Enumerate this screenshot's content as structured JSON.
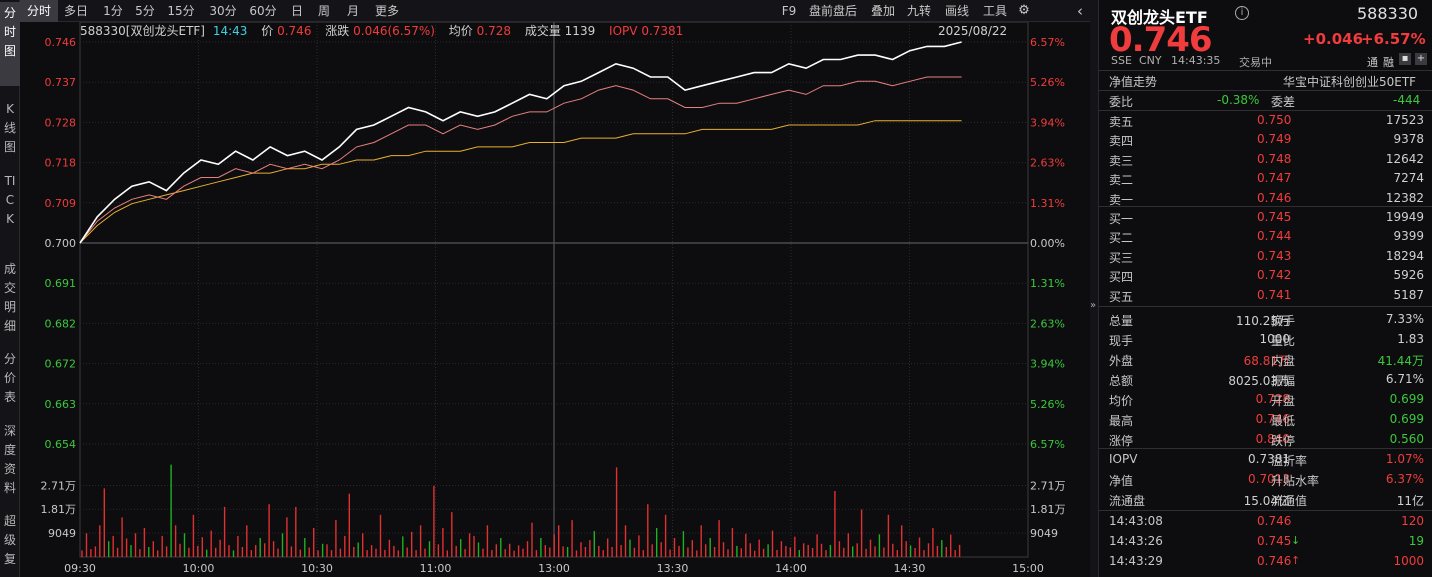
{
  "left_tabs": [
    {
      "label": "分时图",
      "name": "vtab-timeshare",
      "active": true
    },
    {
      "label": "K线图",
      "name": "vtab-kline"
    },
    {
      "label": "TICK",
      "name": "vtab-tick"
    },
    {
      "label": "成交明细",
      "name": "vtab-trade-detail"
    },
    {
      "label": "分价表",
      "name": "vtab-price-table"
    },
    {
      "label": "深度资料",
      "name": "vtab-depth-info"
    },
    {
      "label": "超级复",
      "name": "vtab-super"
    }
  ],
  "toolbar": {
    "periods": [
      "分时",
      "多日",
      "1分",
      "5分",
      "15分",
      "30分",
      "60分",
      "日",
      "周",
      "月",
      "更多"
    ],
    "tools": [
      "F9",
      "盘前盘后",
      "叠加",
      "九转",
      "画线",
      "工具"
    ],
    "settings_icon": "settings-icon",
    "more_icon": "chevron-left-icon"
  },
  "info": {
    "code_name": "588330[双创龙头ETF]",
    "time": "14:43",
    "price_label": "价",
    "price": "0.746",
    "change_label": "涨跌",
    "change": "0.046(6.57%)",
    "avg_label": "均价",
    "avg": "0.728",
    "volume_label": "成交量",
    "volume": "1139",
    "iopv_label": "IOPV",
    "iopv": "0.7381",
    "date": "2025/08/22"
  },
  "axes": {
    "price_ticks": [
      "0.746",
      "0.737",
      "0.728",
      "0.718",
      "0.709",
      "0.700",
      "0.691",
      "0.682",
      "0.672",
      "0.663",
      "0.654"
    ],
    "pct_ticks": [
      "6.57%",
      "5.26%",
      "3.94%",
      "2.63%",
      "1.31%",
      "0.00%",
      "1.31%",
      "2.63%",
      "3.94%",
      "5.26%",
      "6.57%"
    ],
    "vol_ticks": [
      "2.71万",
      "1.81万",
      "9049"
    ],
    "time_ticks": [
      "09:30",
      "10:00",
      "10:30",
      "11:00",
      "13:00",
      "13:30",
      "14:00",
      "14:30",
      "15:00"
    ]
  },
  "chart_data": {
    "type": "line",
    "ylim": [
      0.654,
      0.746
    ],
    "base_price": 0.7,
    "colors": {
      "price": "#ffffff",
      "avg": "#e8b030",
      "iopv": "#e88080",
      "up": "#e03030",
      "down": "#20b020"
    },
    "series": [
      {
        "key": "price",
        "values": [
          0.7,
          0.706,
          0.71,
          0.713,
          0.714,
          0.712,
          0.716,
          0.719,
          0.718,
          0.721,
          0.719,
          0.722,
          0.72,
          0.721,
          0.719,
          0.722,
          0.726,
          0.727,
          0.729,
          0.731,
          0.73,
          0.728,
          0.73,
          0.729,
          0.73,
          0.732,
          0.734,
          0.733,
          0.736,
          0.737,
          0.739,
          0.741,
          0.74,
          0.738,
          0.738,
          0.735,
          0.736,
          0.737,
          0.738,
          0.739,
          0.739,
          0.741,
          0.74,
          0.742,
          0.742,
          0.743,
          0.743,
          0.742,
          0.744,
          0.745,
          0.745,
          0.746
        ]
      },
      {
        "key": "iopv",
        "values": [
          0.7,
          0.705,
          0.708,
          0.71,
          0.711,
          0.71,
          0.713,
          0.715,
          0.715,
          0.717,
          0.716,
          0.718,
          0.717,
          0.718,
          0.717,
          0.719,
          0.722,
          0.723,
          0.725,
          0.727,
          0.727,
          0.725,
          0.727,
          0.726,
          0.727,
          0.729,
          0.73,
          0.73,
          0.732,
          0.733,
          0.735,
          0.736,
          0.735,
          0.733,
          0.733,
          0.731,
          0.731,
          0.732,
          0.732,
          0.733,
          0.734,
          0.735,
          0.734,
          0.736,
          0.736,
          0.737,
          0.737,
          0.736,
          0.737,
          0.738,
          0.738,
          0.738
        ]
      },
      {
        "key": "avg",
        "values": [
          0.7,
          0.704,
          0.707,
          0.709,
          0.71,
          0.711,
          0.712,
          0.713,
          0.714,
          0.715,
          0.716,
          0.716,
          0.717,
          0.717,
          0.718,
          0.718,
          0.719,
          0.719,
          0.72,
          0.72,
          0.721,
          0.721,
          0.721,
          0.722,
          0.722,
          0.722,
          0.723,
          0.723,
          0.723,
          0.724,
          0.724,
          0.724,
          0.725,
          0.725,
          0.725,
          0.725,
          0.726,
          0.726,
          0.726,
          0.726,
          0.726,
          0.727,
          0.727,
          0.727,
          0.727,
          0.727,
          0.728,
          0.728,
          0.728,
          0.728,
          0.728,
          0.728
        ]
      }
    ],
    "volume_max": 36000,
    "volume": [
      [
        2500,
        1
      ],
      [
        9000,
        1
      ],
      [
        3000,
        1
      ],
      [
        4000,
        1
      ],
      [
        12000,
        1
      ],
      [
        26000,
        1
      ],
      [
        6000,
        0
      ],
      [
        8000,
        1
      ],
      [
        3500,
        1
      ],
      [
        15000,
        1
      ],
      [
        7000,
        1
      ],
      [
        4500,
        0
      ],
      [
        9000,
        1
      ],
      [
        3000,
        1
      ],
      [
        11000,
        1
      ],
      [
        3800,
        0
      ],
      [
        6000,
        1
      ],
      [
        2500,
        1
      ],
      [
        8000,
        1
      ],
      [
        4000,
        1
      ],
      [
        35000,
        0
      ],
      [
        12000,
        1
      ],
      [
        5000,
        1
      ],
      [
        9000,
        0
      ],
      [
        3500,
        1
      ],
      [
        16000,
        1
      ],
      [
        4200,
        1
      ],
      [
        7500,
        1
      ],
      [
        2800,
        0
      ],
      [
        10000,
        1
      ],
      [
        3500,
        1
      ],
      [
        6500,
        1
      ],
      [
        19000,
        1
      ],
      [
        4500,
        1
      ],
      [
        2500,
        0
      ],
      [
        8000,
        1
      ],
      [
        3800,
        1
      ],
      [
        12000,
        1
      ],
      [
        2600,
        1
      ],
      [
        4500,
        1
      ],
      [
        7200,
        0
      ],
      [
        5200,
        1
      ],
      [
        20000,
        1
      ],
      [
        6000,
        1
      ],
      [
        3200,
        1
      ],
      [
        9000,
        0
      ],
      [
        15000,
        1
      ],
      [
        4000,
        1
      ],
      [
        19000,
        1
      ],
      [
        2800,
        1
      ],
      [
        7200,
        0
      ],
      [
        3600,
        1
      ],
      [
        11000,
        1
      ],
      [
        2500,
        1
      ],
      [
        5000,
        0
      ],
      [
        4800,
        1
      ],
      [
        2600,
        1
      ],
      [
        14000,
        1
      ],
      [
        3200,
        1
      ],
      [
        8000,
        1
      ],
      [
        24000,
        1
      ],
      [
        3800,
        1
      ],
      [
        5500,
        0
      ],
      [
        9000,
        1
      ],
      [
        2600,
        1
      ],
      [
        4500,
        1
      ],
      [
        3200,
        1
      ],
      [
        16000,
        1
      ],
      [
        2700,
        1
      ],
      [
        6500,
        1
      ],
      [
        4200,
        1
      ],
      [
        2500,
        1
      ],
      [
        7800,
        0
      ],
      [
        3600,
        1
      ],
      [
        9500,
        1
      ],
      [
        2600,
        1
      ],
      [
        12000,
        1
      ],
      [
        3200,
        1
      ],
      [
        6000,
        0
      ],
      [
        27000,
        1
      ],
      [
        4800,
        1
      ],
      [
        11000,
        1
      ],
      [
        2500,
        1
      ],
      [
        17000,
        1
      ],
      [
        4200,
        1
      ],
      [
        6800,
        0
      ],
      [
        3000,
        1
      ],
      [
        9000,
        1
      ],
      [
        8000,
        1
      ],
      [
        5500,
        0
      ],
      [
        3200,
        1
      ],
      [
        12000,
        1
      ],
      [
        2600,
        1
      ],
      [
        4800,
        1
      ],
      [
        7200,
        0
      ],
      [
        3000,
        1
      ],
      [
        5000,
        1
      ],
      [
        2400,
        1
      ],
      [
        4400,
        1
      ],
      [
        3200,
        1
      ],
      [
        6000,
        1
      ],
      [
        13000,
        1
      ],
      [
        2600,
        1
      ],
      [
        7200,
        0
      ],
      [
        4500,
        1
      ],
      [
        3600,
        1
      ],
      [
        8600,
        1
      ],
      [
        12000,
        1
      ],
      [
        4000,
        1
      ],
      [
        3800,
        0
      ],
      [
        14000,
        1
      ],
      [
        2500,
        1
      ],
      [
        5600,
        1
      ],
      [
        3800,
        1
      ],
      [
        6400,
        1
      ],
      [
        9800,
        0
      ],
      [
        4200,
        1
      ],
      [
        2600,
        1
      ],
      [
        7000,
        1
      ],
      [
        3800,
        1
      ],
      [
        34000,
        1
      ],
      [
        4600,
        1
      ],
      [
        12000,
        1
      ],
      [
        6600,
        0
      ],
      [
        3500,
        1
      ],
      [
        8200,
        1
      ],
      [
        2600,
        1
      ],
      [
        20000,
        1
      ],
      [
        4800,
        1
      ],
      [
        11000,
        0
      ],
      [
        5600,
        1
      ],
      [
        16000,
        1
      ],
      [
        2800,
        1
      ],
      [
        7200,
        1
      ],
      [
        4200,
        1
      ],
      [
        9800,
        0
      ],
      [
        3600,
        1
      ],
      [
        6400,
        1
      ],
      [
        2500,
        1
      ],
      [
        12000,
        1
      ],
      [
        4800,
        1
      ],
      [
        7200,
        0
      ],
      [
        3800,
        1
      ],
      [
        14000,
        1
      ],
      [
        5600,
        1
      ],
      [
        2900,
        1
      ],
      [
        11000,
        1
      ],
      [
        4200,
        0
      ],
      [
        3300,
        1
      ],
      [
        8800,
        1
      ],
      [
        5200,
        1
      ],
      [
        2400,
        1
      ],
      [
        6600,
        1
      ],
      [
        3100,
        1
      ],
      [
        4800,
        0
      ],
      [
        10000,
        1
      ],
      [
        2700,
        1
      ],
      [
        6000,
        1
      ],
      [
        4200,
        1
      ],
      [
        3600,
        1
      ],
      [
        7700,
        1
      ],
      [
        2600,
        0
      ],
      [
        5200,
        1
      ],
      [
        4600,
        1
      ],
      [
        3400,
        1
      ],
      [
        8600,
        1
      ],
      [
        5000,
        1
      ],
      [
        2600,
        1
      ],
      [
        4600,
        0
      ],
      [
        25000,
        1
      ],
      [
        6000,
        1
      ],
      [
        3500,
        1
      ],
      [
        9000,
        1
      ],
      [
        4000,
        0
      ],
      [
        5200,
        1
      ],
      [
        18000,
        1
      ],
      [
        3100,
        1
      ],
      [
        6600,
        1
      ],
      [
        4000,
        1
      ],
      [
        8600,
        0
      ],
      [
        3600,
        1
      ],
      [
        16000,
        1
      ],
      [
        5000,
        1
      ],
      [
        2600,
        1
      ],
      [
        12000,
        1
      ],
      [
        6000,
        1
      ],
      [
        4400,
        0
      ],
      [
        3400,
        1
      ],
      [
        7400,
        1
      ],
      [
        2600,
        1
      ],
      [
        5200,
        1
      ],
      [
        11000,
        1
      ],
      [
        4200,
        1
      ],
      [
        6400,
        0
      ],
      [
        3800,
        1
      ],
      [
        8500,
        1
      ],
      [
        2600,
        1
      ],
      [
        4600,
        1
      ]
    ]
  },
  "right": {
    "title": "双创龙头ETF",
    "info_icon": "info-icon",
    "code": "588330",
    "price": "0.746",
    "change": "+0.046",
    "change_pct": "+6.57%",
    "meta": [
      "SSE",
      "CNY",
      "14:43:35",
      "交易中"
    ],
    "meta_icons": [
      "通",
      "融"
    ],
    "nav_trend": "净值走势",
    "index_name": "华宝中证科创创业50ETF",
    "weibi_label": "委比",
    "weibi": "-0.38%",
    "weicha_label": "委差",
    "weicha": "-444",
    "sells": [
      {
        "label": "卖五",
        "price": "0.750",
        "vol": "17523"
      },
      {
        "label": "卖四",
        "price": "0.749",
        "vol": "9378"
      },
      {
        "label": "卖三",
        "price": "0.748",
        "vol": "12642"
      },
      {
        "label": "卖二",
        "price": "0.747",
        "vol": "7274"
      },
      {
        "label": "卖一",
        "price": "0.746",
        "vol": "12382"
      }
    ],
    "buys": [
      {
        "label": "买一",
        "price": "0.745",
        "vol": "19949"
      },
      {
        "label": "买二",
        "price": "0.744",
        "vol": "9399"
      },
      {
        "label": "买三",
        "price": "0.743",
        "vol": "18294"
      },
      {
        "label": "买四",
        "price": "0.742",
        "vol": "5926"
      },
      {
        "label": "买五",
        "price": "0.741",
        "vol": "5187"
      }
    ],
    "stats": [
      {
        "l1": "总量",
        "v1": "110.25万",
        "c1": "w",
        "l2": "换手",
        "v2": "7.33%",
        "c2": "w"
      },
      {
        "l1": "现手",
        "v1": "1000",
        "c1": "w",
        "l2": "量比",
        "v2": "1.83",
        "c2": "w"
      },
      {
        "l1": "外盘",
        "v1": "68.81万",
        "c1": "r",
        "l2": "内盘",
        "v2": "41.44万",
        "c2": "g"
      },
      {
        "l1": "总额",
        "v1": "8025.03万",
        "c1": "w",
        "l2": "振幅",
        "v2": "6.71%",
        "c2": "w"
      },
      {
        "l1": "均价",
        "v1": "0.728",
        "c1": "r",
        "l2": "开盘",
        "v2": "0.699",
        "c2": "g"
      },
      {
        "l1": "最高",
        "v1": "0.746",
        "c1": "r",
        "l2": "最低",
        "v2": "0.699",
        "c2": "g"
      },
      {
        "l1": "涨停",
        "v1": "0.840",
        "c1": "r",
        "l2": "跌停",
        "v2": "0.560",
        "c2": "g"
      }
    ],
    "stats2": [
      {
        "l1": "IOPV",
        "v1": "0.7381",
        "c1": "w",
        "l2": "溢折率",
        "v2": "1.07%",
        "c2": "r"
      },
      {
        "l1": "净值",
        "v1": "0.7013",
        "c1": "r",
        "l2": "升贴水率",
        "v2": "6.37%",
        "c2": "r"
      },
      {
        "l1": "流通盘",
        "v1": "15.04亿",
        "c1": "w",
        "l2": "流通值",
        "v2": "11亿",
        "c2": "w"
      }
    ],
    "ticks": [
      {
        "time": "14:43:08",
        "price": "0.746",
        "arrow": "",
        "vol": "120"
      },
      {
        "time": "14:43:26",
        "price": "0.745",
        "arrow": "↓",
        "vol": "19"
      },
      {
        "time": "14:43:29",
        "price": "0.746",
        "arrow": "↑",
        "vol": "1000"
      }
    ]
  }
}
